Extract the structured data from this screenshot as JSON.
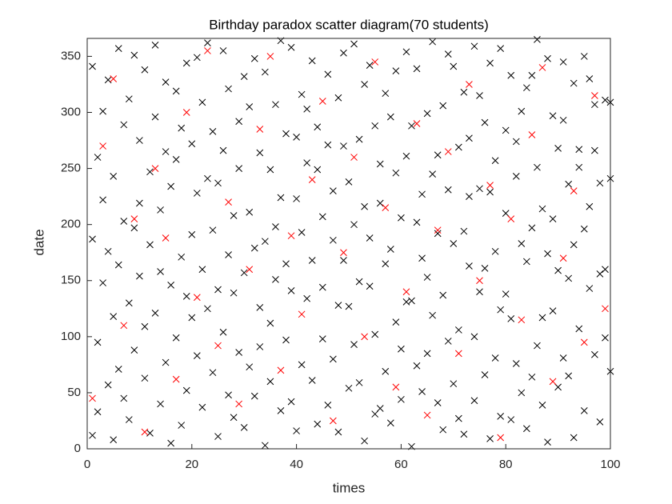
{
  "chart_data": {
    "type": "scatter",
    "title": "Birthday paradox scatter diagram(70 students)",
    "x_label": "times",
    "y_label": "date",
    "xlim": [
      0,
      100
    ],
    "ylim": [
      0,
      366
    ],
    "xticks": [
      0,
      20,
      40,
      60,
      80,
      100
    ],
    "yticks": [
      0,
      50,
      100,
      150,
      200,
      250,
      300,
      350
    ],
    "marker": "x",
    "box": true,
    "series": [
      {
        "color": "#000000",
        "x": [
          1,
          1,
          1,
          2,
          2,
          2,
          3,
          3,
          3,
          4,
          4,
          4,
          5,
          5,
          5,
          6,
          6,
          6,
          7,
          7,
          7,
          8,
          8,
          8,
          9,
          9,
          9,
          10,
          10,
          10,
          11,
          11,
          11,
          12,
          12,
          12,
          13,
          13,
          13,
          14,
          14,
          14,
          15,
          15,
          15,
          16,
          16,
          16,
          17,
          17,
          17,
          18,
          18,
          18,
          19,
          19,
          19,
          20,
          20,
          20,
          21,
          21,
          21,
          22,
          22,
          22,
          23,
          23,
          23,
          24,
          24,
          24,
          25,
          25,
          25,
          26,
          26,
          26,
          27,
          27,
          27,
          28,
          28,
          28,
          29,
          29,
          29,
          30,
          30,
          30,
          31,
          31,
          31,
          32,
          32,
          32,
          33,
          33,
          33,
          34,
          34,
          34,
          35,
          35,
          35,
          36,
          36,
          36,
          37,
          37,
          37,
          38,
          38,
          38,
          39,
          39,
          39,
          40,
          40,
          40,
          41,
          41,
          41,
          42,
          42,
          42,
          43,
          43,
          43,
          44,
          44,
          44,
          45,
          45,
          45,
          46,
          46,
          46,
          47,
          47,
          47,
          48,
          48,
          48,
          49,
          49,
          49,
          50,
          50,
          50,
          51,
          51,
          51,
          52,
          52,
          52,
          53,
          53,
          53,
          54,
          54,
          54,
          55,
          55,
          55,
          56,
          56,
          56,
          57,
          57,
          57,
          58,
          58,
          58,
          59,
          59,
          59,
          60,
          60,
          60,
          61,
          61,
          61,
          62,
          62,
          62,
          63,
          63,
          63,
          64,
          64,
          64,
          65,
          65,
          65,
          66,
          66,
          66,
          67,
          67,
          67,
          68,
          68,
          68,
          69,
          69,
          69,
          70,
          70,
          70,
          71,
          71,
          71,
          72,
          72,
          72,
          73,
          73,
          73,
          74,
          74,
          74,
          75,
          75,
          75,
          76,
          76,
          76,
          77,
          77,
          77,
          78,
          78,
          78,
          79,
          79,
          79,
          80,
          80,
          80,
          81,
          81,
          81,
          82,
          82,
          82,
          83,
          83,
          83,
          84,
          84,
          84,
          85,
          85,
          85,
          86,
          86,
          86,
          87,
          87,
          87,
          88,
          88,
          88,
          89,
          89,
          89,
          90,
          90,
          90,
          91,
          91,
          91,
          92,
          92,
          92,
          93,
          93,
          93,
          94,
          94,
          94,
          95,
          95,
          95,
          96,
          96,
          96,
          97,
          97,
          97,
          98,
          98,
          98,
          99,
          99,
          99,
          100,
          100,
          100
        ],
        "y": [
          12,
          187,
          341,
          95,
          260,
          33,
          301,
          148,
          222,
          57,
          329,
          176,
          243,
          8,
          118,
          164,
          357,
          71,
          289,
          203,
          45,
          130,
          26,
          312,
          351,
          88,
          197,
          219,
          154,
          275,
          63,
          338,
          109,
          182,
          247,
          14,
          296,
          121,
          360,
          40,
          213,
          158,
          327,
          77,
          265,
          146,
          5,
          234,
          258,
          319,
          99,
          21,
          171,
          286,
          344,
          136,
          52,
          191,
          272,
          117,
          83,
          349,
          228,
          309,
          160,
          37,
          125,
          241,
          362,
          68,
          195,
          283,
          237,
          11,
          142,
          355,
          104,
          266,
          173,
          48,
          321,
          28,
          208,
          139,
          292,
          86,
          250,
          157,
          332,
          19,
          211,
          73,
          305,
          47,
          179,
          348,
          264,
          126,
          91,
          336,
          3,
          185,
          112,
          249,
          60,
          198,
          307,
          151,
          34,
          224,
          364,
          281,
          97,
          165,
          141,
          358,
          42,
          223,
          16,
          278,
          75,
          193,
          316,
          303,
          134,
          255,
          168,
          61,
          346,
          249,
          287,
          22,
          98,
          144,
          207,
          334,
          39,
          271,
          186,
          230,
          80,
          15,
          313,
          128,
          270,
          168,
          353,
          127,
          54,
          238,
          361,
          200,
          93,
          59,
          276,
          149,
          216,
          7,
          325,
          145,
          342,
          188,
          288,
          102,
          31,
          36,
          254,
          219,
          317,
          165,
          69,
          178,
          23,
          296,
          246,
          337,
          113,
          89,
          206,
          44,
          354,
          131,
          261,
          132,
          288,
          2,
          202,
          74,
          339,
          51,
          227,
          170,
          299,
          153,
          85,
          119,
          363,
          245,
          262,
          41,
          192,
          17,
          306,
          137,
          231,
          96,
          352,
          341,
          183,
          58,
          106,
          269,
          27,
          194,
          13,
          318,
          277,
          225,
          163,
          43,
          359,
          100,
          315,
          140,
          232,
          161,
          66,
          291,
          229,
          344,
          9,
          81,
          176,
          257,
          357,
          29,
          124,
          138,
          284,
          210,
          26,
          116,
          333,
          274,
          243,
          76,
          183,
          50,
          301,
          322,
          167,
          18,
          64,
          333,
          197,
          251,
          92,
          365,
          117,
          214,
          39,
          348,
          6,
          174,
          205,
          297,
          123,
          55,
          159,
          268,
          293,
          81,
          345,
          152,
          236,
          65,
          10,
          326,
          182,
          267,
          107,
          251,
          196,
          350,
          34,
          330,
          143,
          216,
          84,
          266,
          307,
          237,
          24,
          156,
          160,
          311,
          99,
          309,
          69,
          241
        ]
      },
      {
        "color": "#ff0000",
        "x": [
          1,
          3,
          5,
          7,
          9,
          11,
          13,
          15,
          17,
          19,
          21,
          23,
          25,
          27,
          29,
          31,
          33,
          35,
          37,
          39,
          41,
          43,
          45,
          47,
          49,
          51,
          53,
          55,
          57,
          59,
          61,
          63,
          65,
          67,
          69,
          71,
          73,
          75,
          77,
          79,
          81,
          83,
          85,
          87,
          89,
          91,
          93,
          95,
          97,
          99
        ],
        "y": [
          45,
          270,
          330,
          110,
          205,
          15,
          250,
          188,
          62,
          300,
          135,
          355,
          92,
          220,
          40,
          160,
          285,
          350,
          70,
          190,
          120,
          240,
          310,
          25,
          175,
          260,
          100,
          345,
          215,
          55,
          140,
          290,
          30,
          195,
          265,
          85,
          325,
          150,
          235,
          10,
          205,
          115,
          280,
          340,
          60,
          170,
          230,
          95,
          315,
          125
        ]
      }
    ]
  }
}
